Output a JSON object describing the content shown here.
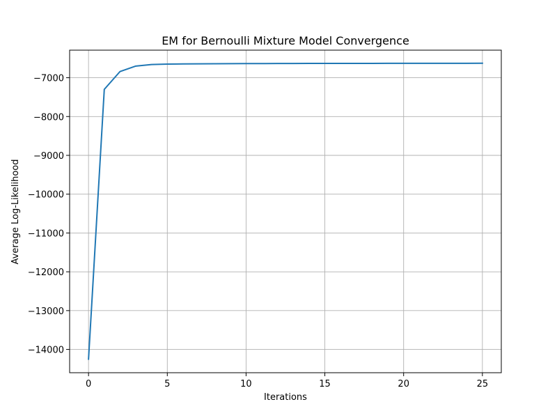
{
  "chart_data": {
    "type": "line",
    "title": "EM for Bernoulli Mixture Model Convergence",
    "xlabel": "Iterations",
    "ylabel": "Average Log-Likelihood",
    "xlim": [
      -1.2,
      26.2
    ],
    "ylim": [
      -14600,
      -6290
    ],
    "xticks": [
      0,
      5,
      10,
      15,
      20,
      25
    ],
    "xtick_labels": [
      "0",
      "5",
      "10",
      "15",
      "20",
      "25"
    ],
    "yticks": [
      -14000,
      -13000,
      -12000,
      -11000,
      -10000,
      -9000,
      -8000,
      -7000
    ],
    "ytick_labels": [
      "−14000",
      "−13000",
      "−12000",
      "−11000",
      "−10000",
      "−9000",
      "−8000",
      "−7000"
    ],
    "grid": true,
    "series": [
      {
        "color": "#1f77b4",
        "x": [
          0,
          1,
          2,
          3,
          4,
          5,
          6,
          7,
          8,
          9,
          10,
          11,
          12,
          13,
          14,
          15,
          16,
          17,
          18,
          19,
          20,
          21,
          22,
          23,
          24,
          25
        ],
        "y": [
          -14250,
          -7300,
          -6840,
          -6700,
          -6660,
          -6650,
          -6645,
          -6642,
          -6640,
          -6638,
          -6636,
          -6635,
          -6634,
          -6633,
          -6632,
          -6631,
          -6631,
          -6630,
          -6630,
          -6629,
          -6629,
          -6629,
          -6628,
          -6628,
          -6628,
          -6627
        ]
      }
    ]
  }
}
